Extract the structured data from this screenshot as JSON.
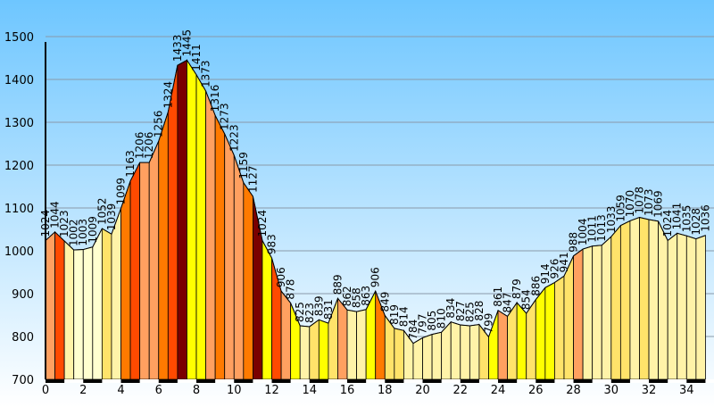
{
  "colors": {
    "background_top": "#6ec6ff",
    "background_bottom": "#ffffff",
    "gridline": "#8a9aa8",
    "outline": "#000000",
    "gradient_fills": [
      "#ffffd0",
      "#fff3a8",
      "#ffe36a",
      "#ffff00",
      "#ffa060",
      "#ff7a00",
      "#ff4a00",
      "#7a0000"
    ]
  },
  "chart_data": {
    "type": "area",
    "title": "",
    "xlabel": "",
    "ylabel": "",
    "xlim": [
      0,
      35.5
    ],
    "ylim": [
      700,
      1500
    ],
    "x_ticks": [
      0,
      2,
      4,
      6,
      8,
      10,
      12,
      14,
      16,
      18,
      20,
      22,
      24,
      26,
      28,
      30,
      32,
      34
    ],
    "y_ticks": [
      700,
      800,
      900,
      1000,
      1100,
      1200,
      1300,
      1400,
      1500
    ],
    "grid": true,
    "legend": "none",
    "x": [
      0,
      0.5,
      1,
      1.5,
      2,
      2.5,
      3,
      3.5,
      4,
      4.5,
      5,
      5.5,
      6,
      6.5,
      7,
      7.5,
      8,
      8.5,
      9,
      9.5,
      10,
      10.5,
      11,
      11.5,
      12,
      12.5,
      13,
      13.5,
      14,
      14.5,
      15,
      15.5,
      16,
      16.5,
      17,
      17.5,
      18,
      18.5,
      19,
      19.5,
      20,
      20.5,
      21,
      21.5,
      22,
      22.5,
      23,
      23.5,
      24,
      24.5,
      25,
      25.5,
      26,
      26.5,
      27,
      27.5,
      28,
      28.5,
      29,
      29.5,
      30,
      30.5,
      31,
      31.5,
      32,
      32.5,
      33,
      33.5,
      34,
      34.5,
      35
    ],
    "values": [
      1024,
      1044,
      1023,
      1002,
      1003,
      1009,
      1052,
      1039,
      1099,
      1163,
      1206,
      1206,
      1256,
      1324,
      1433,
      1445,
      1411,
      1373,
      1316,
      1273,
      1223,
      1159,
      1127,
      1024,
      983,
      906,
      878,
      825,
      823,
      839,
      831,
      889,
      862,
      858,
      863,
      906,
      849,
      819,
      814,
      784,
      797,
      805,
      810,
      834,
      827,
      825,
      828,
      799,
      861,
      847,
      879,
      854,
      886,
      914,
      926,
      941,
      988,
      1004,
      1011,
      1013,
      1033,
      1059,
      1070,
      1078,
      1073,
      1069,
      1024,
      1041,
      1035,
      1028,
      1036
    ],
    "segment_fills": [
      4,
      6,
      1,
      0,
      0,
      0,
      2,
      1,
      5,
      6,
      4,
      4,
      5,
      6,
      7,
      3,
      3,
      4,
      5,
      4,
      4,
      5,
      7,
      3,
      6,
      4,
      3,
      1,
      2,
      3,
      2,
      4,
      1,
      1,
      3,
      5,
      2,
      2,
      1,
      1,
      1,
      1,
      1,
      1,
      1,
      1,
      2,
      3,
      4,
      2,
      3,
      2,
      3,
      3,
      2,
      2,
      4,
      1,
      1,
      1,
      2,
      2,
      1,
      2,
      1,
      1,
      1,
      1,
      1,
      1
    ]
  }
}
